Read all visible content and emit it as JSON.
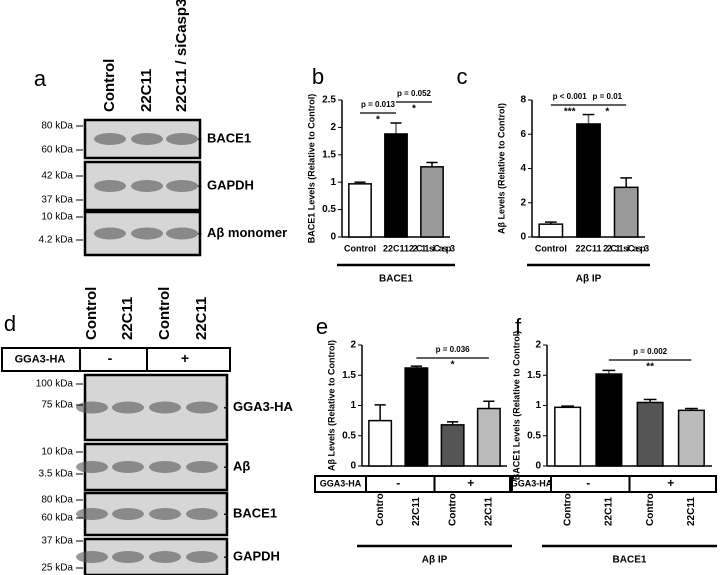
{
  "blots": [
    {
      "panel": "a",
      "columns": [
        "Control",
        "22C11",
        "22C11 / siCasp3"
      ],
      "rows": [
        {
          "markers": [
            "80 kDa",
            "60 kDa"
          ],
          "label": "BACE1"
        },
        {
          "markers": [
            "42 kDa",
            "37 kDa"
          ],
          "label": "GAPDH"
        },
        {
          "markers": [
            "10 kDa",
            "4.2 kDa"
          ],
          "label": "Aβ monomer"
        }
      ]
    },
    {
      "panel": "d",
      "columns": [
        "Control",
        "22C11",
        "Control",
        "22C11"
      ],
      "condition": {
        "label": "GGA3-HA",
        "signs": [
          "-",
          "+"
        ]
      },
      "rows": [
        {
          "markers": [
            "100 kDa",
            "75 kDa"
          ],
          "label": "GGA3-HA"
        },
        {
          "markers": [
            "10 kDa",
            "3.5 kDa"
          ],
          "label": "Aβ"
        },
        {
          "markers": [
            "80 kDa",
            "60 kDa"
          ],
          "label": "BACE1"
        },
        {
          "markers": [
            "37 kDa",
            "25 kDa"
          ],
          "label": "GAPDH"
        }
      ]
    }
  ],
  "chart_data": [
    {
      "type": "bar",
      "panel": "b",
      "ylabel": "BACE1 Levels (Relative to Control)",
      "categories": [
        "Control",
        "22C11",
        "22C11 siCasp3"
      ],
      "values": [
        0.97,
        1.88,
        1.28
      ],
      "errors": [
        0.03,
        0.2,
        0.08
      ],
      "colors": [
        "#ffffff",
        "#000000",
        "#999999"
      ],
      "ylim": [
        0,
        2.5
      ],
      "yticks": [
        0,
        0.5,
        1.0,
        1.5,
        2.0,
        2.5
      ],
      "annotations": [
        {
          "text": "p = 0.013",
          "stars": "*"
        },
        {
          "text": "p = 0.052",
          "stars": "*"
        }
      ],
      "footer": "BACE1"
    },
    {
      "type": "bar",
      "panel": "c",
      "ylabel": "Aβ Levels (Relative to Control)",
      "categories": [
        "Control",
        "22C11",
        "22C11 siCasp3"
      ],
      "values": [
        0.75,
        6.6,
        2.9
      ],
      "errors": [
        0.12,
        0.55,
        0.55
      ],
      "colors": [
        "#ffffff",
        "#000000",
        "#999999"
      ],
      "ylim": [
        0,
        8
      ],
      "yticks": [
        0,
        2,
        4,
        6,
        8
      ],
      "annotations": [
        {
          "text": "p < 0.001",
          "stars": "***"
        },
        {
          "text": "p = 0.01",
          "stars": "*"
        }
      ],
      "footer": "Aβ IP"
    },
    {
      "type": "bar",
      "panel": "e",
      "ylabel": "Aβ Levels (Relative to Control)",
      "categories": [
        "Control",
        "22C11",
        "Control",
        "22C11"
      ],
      "values": [
        0.75,
        1.62,
        0.68,
        0.95
      ],
      "errors": [
        0.26,
        0.03,
        0.05,
        0.12
      ],
      "colors": [
        "#ffffff",
        "#000000",
        "#555555",
        "#bbbbbb"
      ],
      "ylim": [
        0,
        2
      ],
      "yticks": [
        0,
        0.5,
        1.0,
        1.5,
        2.0
      ],
      "condition": {
        "label": "GGA3-HA",
        "signs": [
          "-",
          "+"
        ]
      },
      "annotations": [
        {
          "text": "p = 0.036",
          "stars": "*"
        }
      ],
      "footer": "Aβ IP"
    },
    {
      "type": "bar",
      "panel": "f",
      "ylabel": "BACE1 Levels (Relative to Control)",
      "categories": [
        "Control",
        "22C11",
        "Control",
        "22C11"
      ],
      "values": [
        0.97,
        1.52,
        1.05,
        0.92
      ],
      "errors": [
        0.02,
        0.06,
        0.05,
        0.03
      ],
      "colors": [
        "#ffffff",
        "#000000",
        "#555555",
        "#bbbbbb"
      ],
      "ylim": [
        0,
        2
      ],
      "yticks": [
        0,
        0.5,
        1.0,
        1.5,
        2.0
      ],
      "condition": {
        "label": "GGA3-HA",
        "signs": [
          "-",
          "+"
        ]
      },
      "annotations": [
        {
          "text": "p = 0.002",
          "stars": "**"
        }
      ],
      "footer": "BACE1"
    }
  ]
}
